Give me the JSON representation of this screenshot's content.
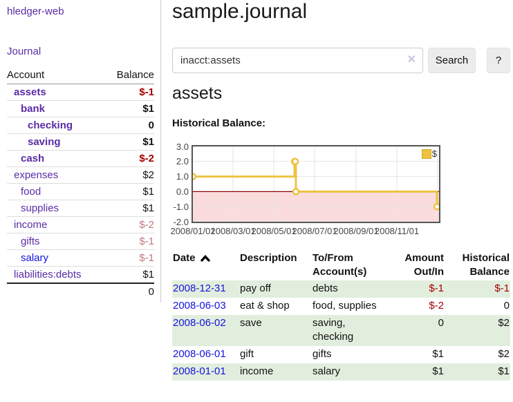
{
  "app": {
    "title": "hledger-web"
  },
  "colors": {
    "link_purple": "#5a2ca5",
    "link_blue": "#1414dd",
    "negative_strong": "#a30000",
    "negative_soft": "#c4777c",
    "row_shade_green": "#e2eedd"
  },
  "sidebar": {
    "journal_link": "Journal",
    "accounts": {
      "header_account": "Account",
      "header_balance": "Balance",
      "rows": [
        {
          "label": "assets",
          "indent": 1,
          "bold": true,
          "link_color": "purple",
          "balance": "$-1"
        },
        {
          "label": "bank",
          "indent": 2,
          "bold": true,
          "link_color": "purple",
          "balance": "$1"
        },
        {
          "label": "checking",
          "indent": 3,
          "bold": true,
          "link_color": "purple",
          "balance": "0"
        },
        {
          "label": "saving",
          "indent": 3,
          "bold": true,
          "link_color": "purple",
          "balance": "$1"
        },
        {
          "label": "cash",
          "indent": 2,
          "bold": true,
          "link_color": "purple",
          "balance": "$-2"
        },
        {
          "label": "expenses",
          "indent": 1,
          "bold": false,
          "link_color": "purple",
          "balance": "$2"
        },
        {
          "label": "food",
          "indent": 2,
          "bold": false,
          "link_color": "purple",
          "balance": "$1"
        },
        {
          "label": "supplies",
          "indent": 2,
          "bold": false,
          "link_color": "purple",
          "balance": "$1"
        },
        {
          "label": "income",
          "indent": 1,
          "bold": false,
          "link_color": "purple",
          "balance": "$-2"
        },
        {
          "label": "gifts",
          "indent": 2,
          "bold": false,
          "link_color": "purple",
          "balance": "$-1"
        },
        {
          "label": "salary",
          "indent": 2,
          "bold": false,
          "link_color": "blue",
          "balance": "$-1"
        },
        {
          "label": "liabilities:debts",
          "indent": 1,
          "bold": false,
          "link_color": "purple",
          "balance": "$1"
        }
      ],
      "total": "0"
    }
  },
  "main": {
    "title": "sample.journal",
    "search": {
      "value": "inacct:assets",
      "clear_icon": "✕",
      "button_label": "Search",
      "help_label": "?"
    },
    "account_heading": "assets",
    "chart_label": "Historical Balance:"
  },
  "chart_data": {
    "type": "line",
    "style": "step",
    "title": "Historical Balance",
    "legend": "$",
    "legend_position": "top-right",
    "grid": true,
    "ylim": [
      -2.0,
      3.0
    ],
    "yticks": [
      3.0,
      2.0,
      1.0,
      0.0,
      -1.0,
      -2.0
    ],
    "xticks": [
      "2008/01/01",
      "2008/03/01",
      "2008/05/01",
      "2008/07/01",
      "2008/09/01",
      "2008/11/01"
    ],
    "grid_dates": [
      "2008/03/01",
      "2008/05/01",
      "2008/07/01",
      "2008/09/01",
      "2008/11/01",
      "2009/01/01"
    ],
    "x_range": [
      "2008-01-01",
      "2009-01-03"
    ],
    "points": [
      [
        "2008-01-01",
        1
      ],
      [
        "2008-06-01",
        2
      ],
      [
        "2008-06-02",
        2
      ],
      [
        "2008-06-03",
        0
      ],
      [
        "2008-12-31",
        -1
      ]
    ],
    "colors": {
      "line": "#edc240",
      "marker_fill": "#ffffff",
      "below_zero_fill": "#fbdcdc",
      "zero_line": "#8b0000",
      "grid": "#e4e4e4",
      "border": "#545454"
    }
  },
  "register": {
    "headers": [
      {
        "label": "Date",
        "align": "left",
        "sort": "ascending"
      },
      {
        "label": "Description",
        "align": "left"
      },
      {
        "label": "To/From Account(s)",
        "align": "left"
      },
      {
        "label": "Amount Out/In",
        "align": "right"
      },
      {
        "label": "Historical Balance",
        "align": "right"
      }
    ],
    "rows": [
      {
        "date": "2008-12-31",
        "description": "pay off",
        "accounts": "debts",
        "amount": "$-1",
        "balance": "$-1"
      },
      {
        "date": "2008-06-03",
        "description": "eat & shop",
        "accounts": "food, supplies",
        "amount": "$-2",
        "balance": "0"
      },
      {
        "date": "2008-06-02",
        "description": "save",
        "accounts": "saving, checking",
        "amount": "0",
        "balance": "$2"
      },
      {
        "date": "2008-06-01",
        "description": "gift",
        "accounts": "gifts",
        "amount": "$1",
        "balance": "$2"
      },
      {
        "date": "2008-01-01",
        "description": "income",
        "accounts": "salary",
        "amount": "$1",
        "balance": "$1"
      }
    ]
  }
}
